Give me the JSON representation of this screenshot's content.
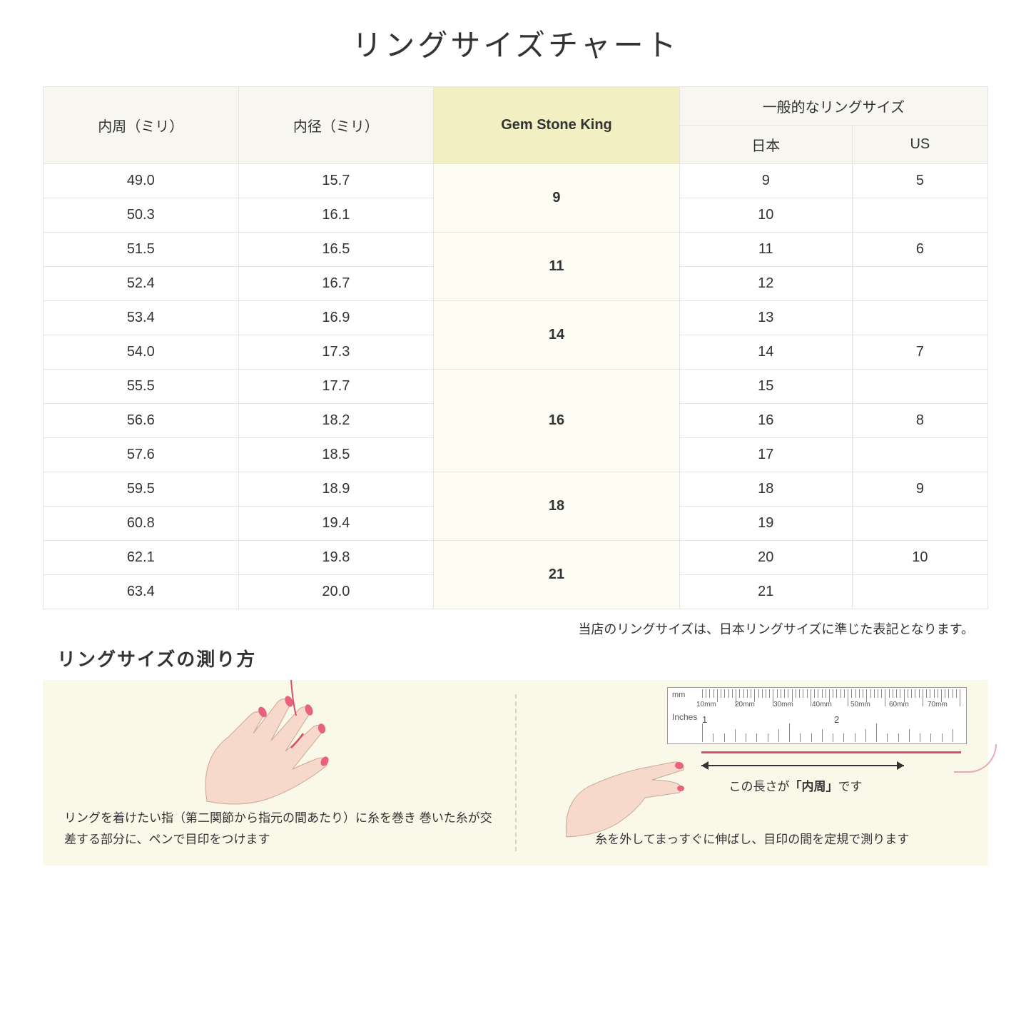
{
  "title": "リングサイズチャート",
  "table": {
    "headers": {
      "circumference": "内周（ミリ）",
      "diameter": "内径（ミリ）",
      "gsk": "Gem Stone King",
      "general_group": "一般的なリングサイズ",
      "japan": "日本",
      "us": "US"
    },
    "header_bg": "#f7f6f0",
    "highlight_header_bg": "#f2f0c2",
    "highlight_cell_bg": "#fdfdf3",
    "border_color": "#e5e5e5",
    "rows": [
      {
        "circ": "49.0",
        "dia": "15.7",
        "gsk": "9",
        "gsk_span": 2,
        "jp": "9",
        "us": "5"
      },
      {
        "circ": "50.3",
        "dia": "16.1",
        "jp": "10",
        "us": ""
      },
      {
        "circ": "51.5",
        "dia": "16.5",
        "gsk": "11",
        "gsk_span": 2,
        "jp": "11",
        "us": "6"
      },
      {
        "circ": "52.4",
        "dia": "16.7",
        "jp": "12",
        "us": ""
      },
      {
        "circ": "53.4",
        "dia": "16.9",
        "gsk": "14",
        "gsk_span": 2,
        "jp": "13",
        "us": ""
      },
      {
        "circ": "54.0",
        "dia": "17.3",
        "jp": "14",
        "us": "7"
      },
      {
        "circ": "55.5",
        "dia": "17.7",
        "gsk": "16",
        "gsk_span": 3,
        "jp": "15",
        "us": ""
      },
      {
        "circ": "56.6",
        "dia": "18.2",
        "jp": "16",
        "us": "8"
      },
      {
        "circ": "57.6",
        "dia": "18.5",
        "jp": "17",
        "us": ""
      },
      {
        "circ": "59.5",
        "dia": "18.9",
        "gsk": "18",
        "gsk_span": 2,
        "jp": "18",
        "us": "9"
      },
      {
        "circ": "60.8",
        "dia": "19.4",
        "jp": "19",
        "us": ""
      },
      {
        "circ": "62.1",
        "dia": "19.8",
        "gsk": "21",
        "gsk_span": 2,
        "jp": "20",
        "us": "10"
      },
      {
        "circ": "63.4",
        "dia": "20.0",
        "jp": "21",
        "us": ""
      }
    ]
  },
  "footnote": "当店のリングサイズは、日本リングサイズに準じた表記となります。",
  "subtitle": "リングサイズの測り方",
  "instructions": {
    "bg": "#faf8e8",
    "left_caption": "リングを着けたい指（第二関節から指元の間あたり）に糸を巻き\n巻いた糸が交差する部分に、ペンで目印をつけます",
    "right_caption": "糸を外してまっすぐに伸ばし、目印の間を定規で測ります",
    "measure_label_pre": "この長さが",
    "measure_label_bold": "「内周」",
    "measure_label_post": "です",
    "ruler": {
      "mm_label": "mm",
      "inches_label": "Inches",
      "mm_ticks": [
        "10mm",
        "20mm",
        "30mm",
        "40mm",
        "50mm",
        "60mm",
        "70mm"
      ],
      "inch_ticks": [
        "1",
        "2"
      ]
    },
    "hand_skin": "#f7d9cc",
    "hand_nail": "#e8627d",
    "thread_color": "#d94f6b"
  }
}
